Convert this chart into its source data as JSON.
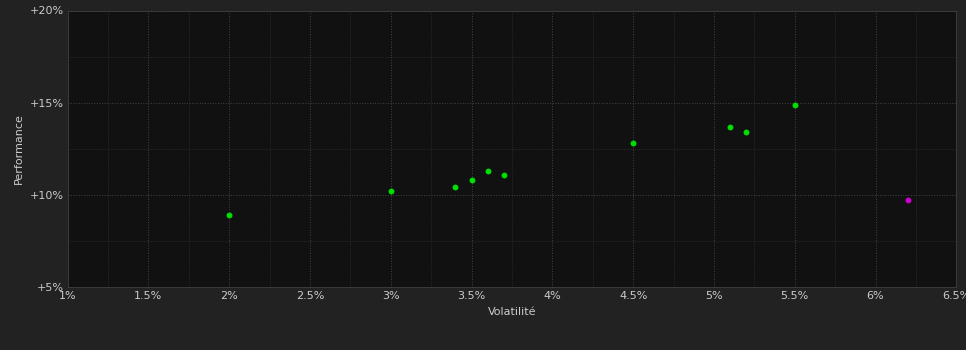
{
  "background_color": "#222222",
  "plot_bg_color": "#111111",
  "grid_color": "#444444",
  "xlabel": "Volatilité",
  "ylabel": "Performance",
  "xlim": [
    0.01,
    0.065
  ],
  "ylim": [
    0.05,
    0.2
  ],
  "xticks": [
    0.01,
    0.015,
    0.02,
    0.025,
    0.03,
    0.035,
    0.04,
    0.045,
    0.05,
    0.055,
    0.06,
    0.065
  ],
  "yticks": [
    0.05,
    0.1,
    0.15,
    0.2
  ],
  "xtick_labels": [
    "1%",
    "1.5%",
    "2%",
    "2.5%",
    "3%",
    "3.5%",
    "4%",
    "4.5%",
    "5%",
    "5.5%",
    "6%",
    "6.5%"
  ],
  "ytick_labels": [
    "+5%",
    "+10%",
    "+15%",
    "+20%"
  ],
  "green_points": [
    [
      0.02,
      0.089
    ],
    [
      0.03,
      0.102
    ],
    [
      0.034,
      0.104
    ],
    [
      0.035,
      0.108
    ],
    [
      0.036,
      0.113
    ],
    [
      0.037,
      0.111
    ],
    [
      0.045,
      0.128
    ],
    [
      0.051,
      0.137
    ],
    [
      0.052,
      0.134
    ],
    [
      0.055,
      0.149
    ]
  ],
  "magenta_points": [
    [
      0.062,
      0.097
    ]
  ],
  "green_color": "#00dd00",
  "magenta_color": "#cc00cc",
  "point_size": 18,
  "font_color": "#cccccc",
  "font_size": 8,
  "label_font_size": 8
}
